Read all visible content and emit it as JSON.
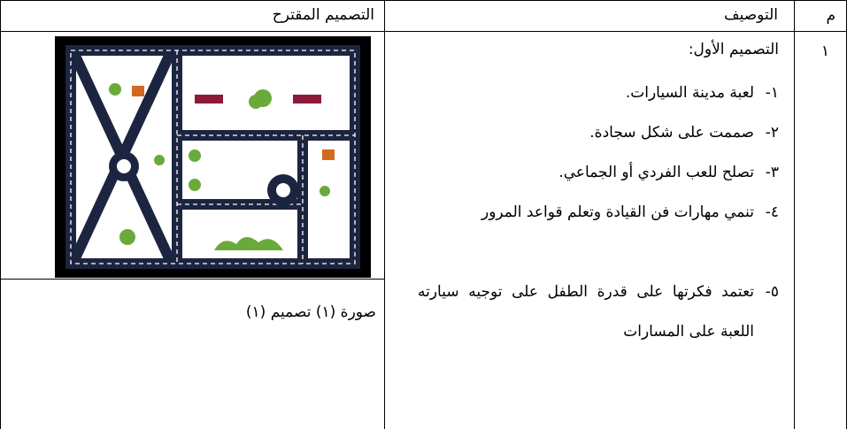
{
  "header": {
    "number": "م",
    "description": "التوصيف",
    "design": "التصميم المقترح"
  },
  "row": {
    "number": "١",
    "title": "التصميم الأول:",
    "items": [
      {
        "marker": "١-",
        "text": "لعبة مدينة السيارات."
      },
      {
        "marker": "٢-",
        "text": "صممت على شكل سجادة."
      },
      {
        "marker": "٣-",
        "text": "تصلح للعب الفردي أو الجماعي."
      },
      {
        "marker": "٤-",
        "text": "تنمي مهارات فن القيادة وتعلم قواعد المرور"
      },
      {
        "marker": "٥-",
        "text": "تعتمد فكرتها على قدرة الطفل على توجيه سيارته اللعبة على المسارات"
      }
    ],
    "caption": "صورة (١) تصميم (١)"
  }
}
